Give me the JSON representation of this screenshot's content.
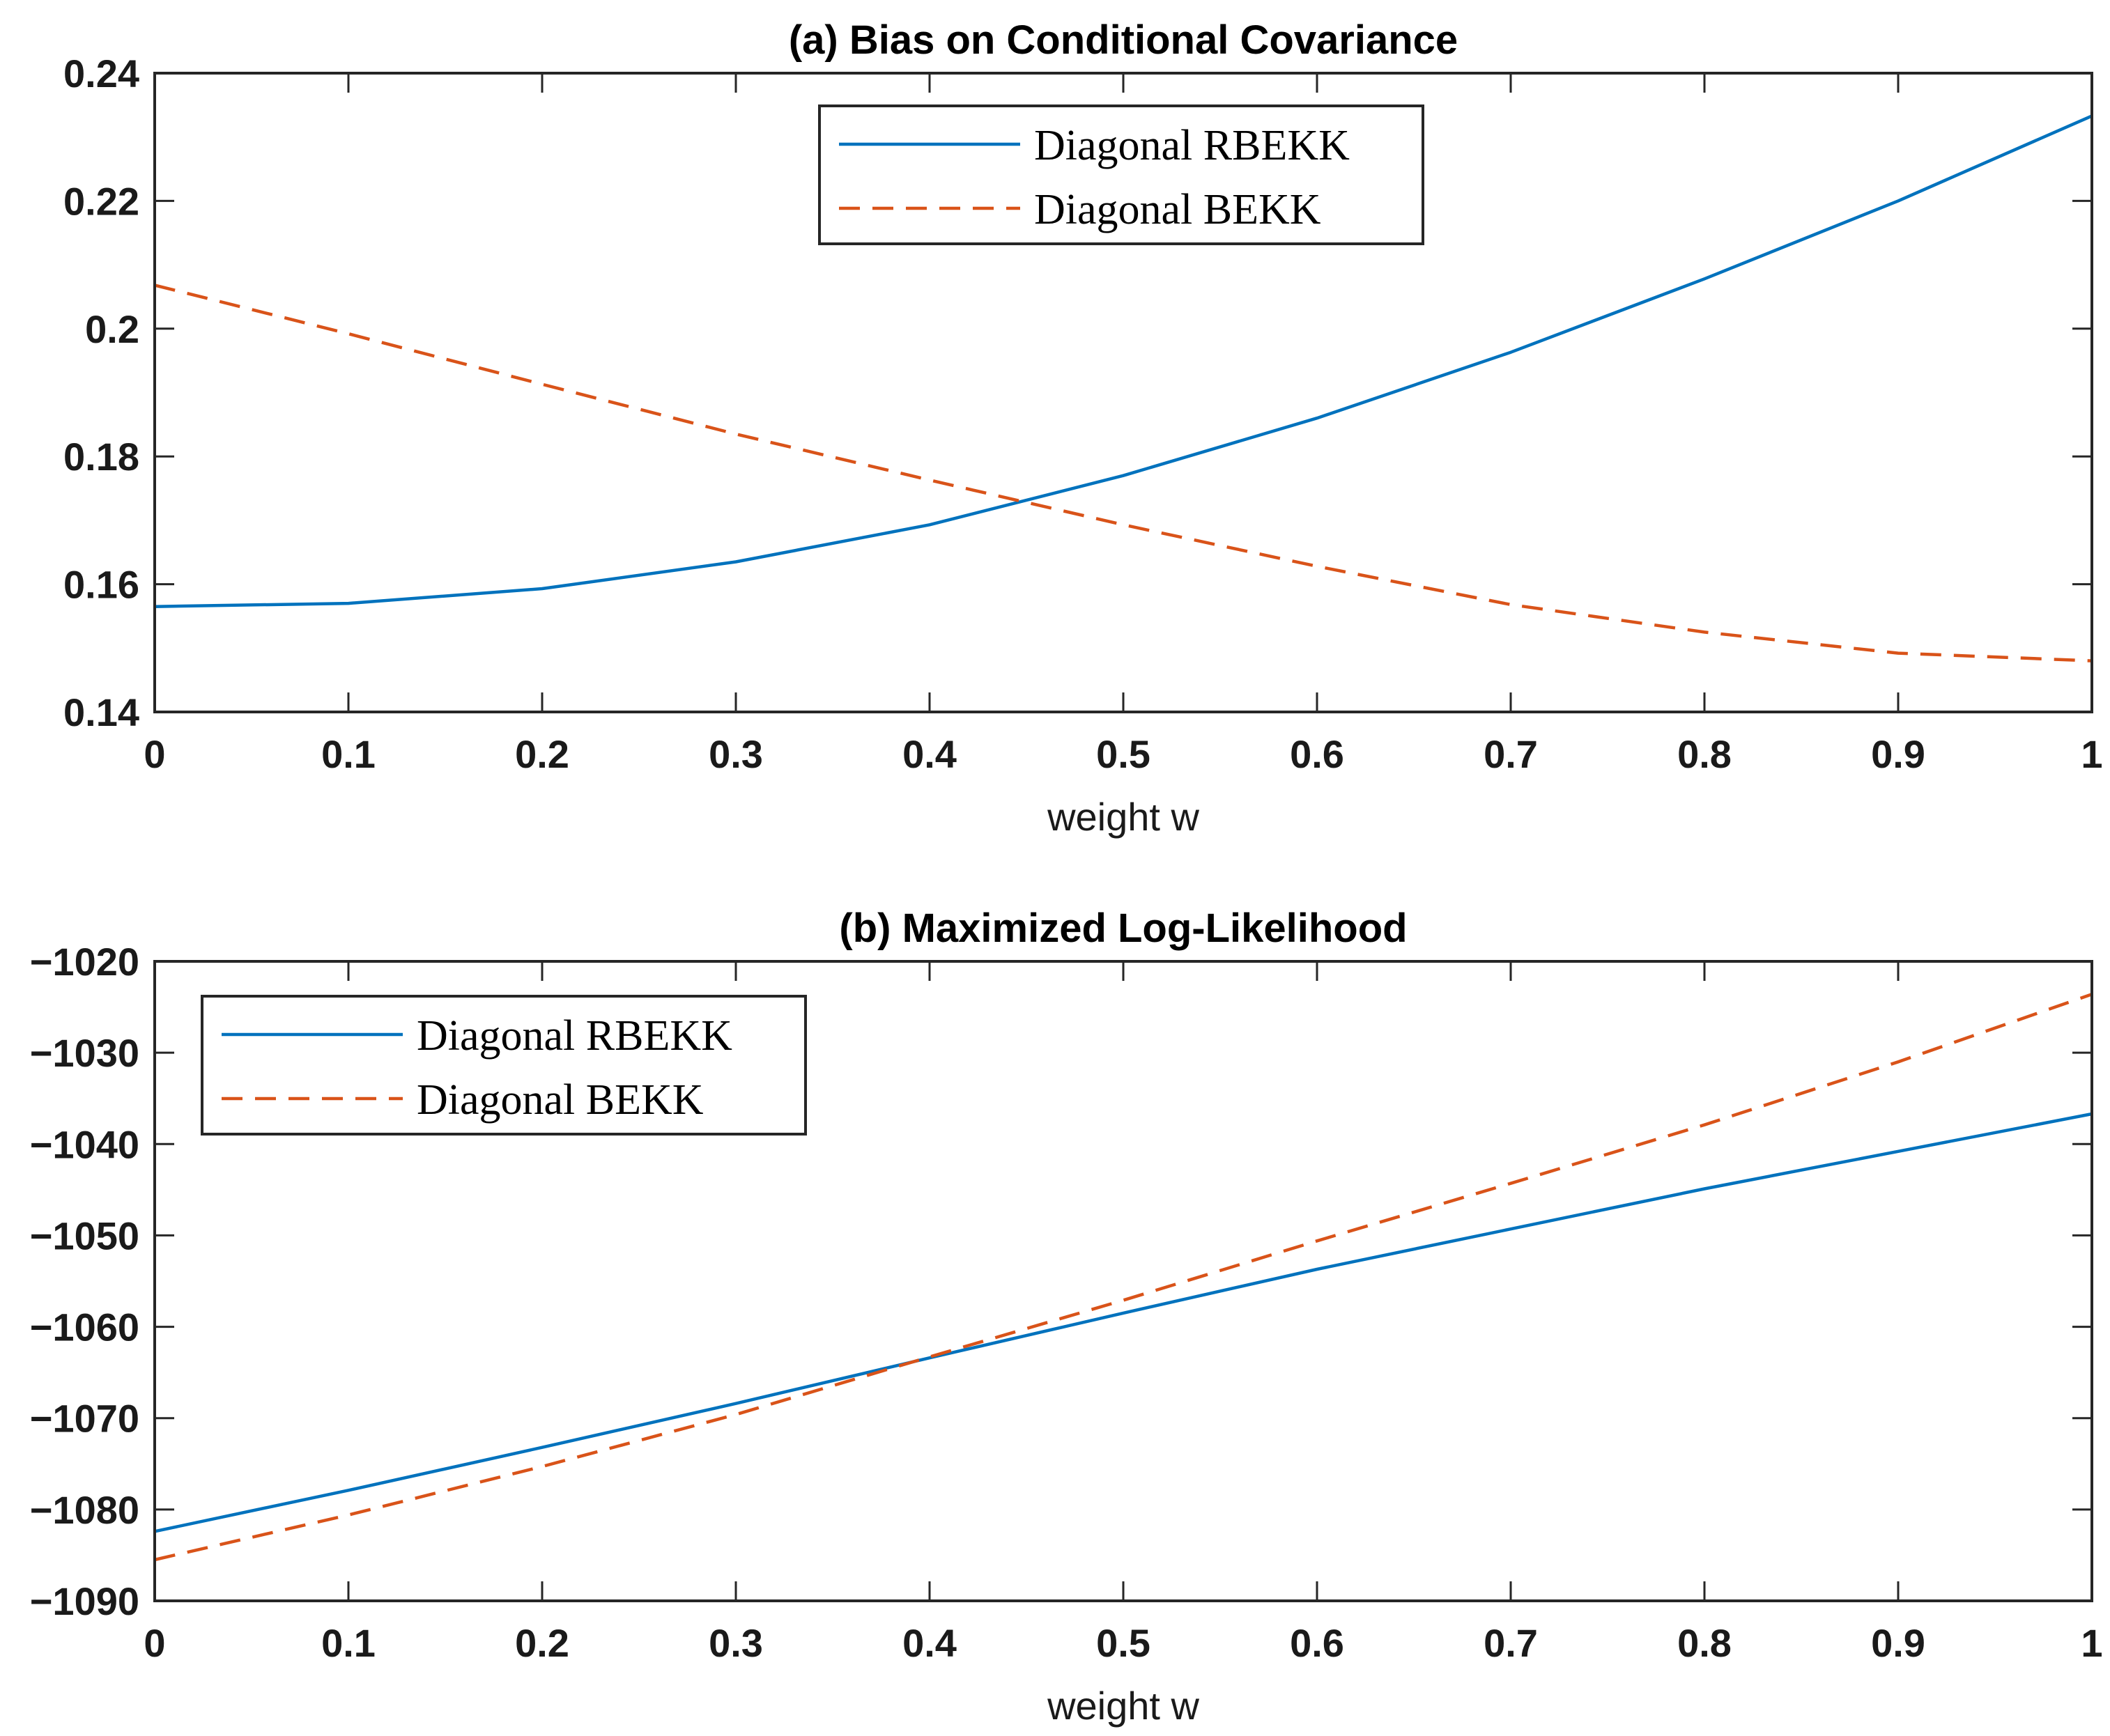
{
  "chart_data": [
    {
      "type": "line",
      "title": "(a) Bias on Conditional Covariance",
      "xlabel": "weight w",
      "ylabel": "",
      "xlim": [
        0,
        1
      ],
      "ylim": [
        0.14,
        0.24
      ],
      "x_ticks": [
        "0",
        "0.1",
        "0.2",
        "0.3",
        "0.4",
        "0.5",
        "0.6",
        "0.7",
        "0.8",
        "0.9",
        "1"
      ],
      "y_ticks": [
        "0.14",
        "0.16",
        "0.18",
        "0.2",
        "0.22",
        "0.24"
      ],
      "legend_position": "top-center",
      "grid": false,
      "x": [
        0,
        0.1,
        0.2,
        0.3,
        0.4,
        0.5,
        0.6,
        0.7,
        0.8,
        0.9,
        1.0
      ],
      "series": [
        {
          "name": "Diagonal RBEKK",
          "color": "#0072BD",
          "style": "solid",
          "values": [
            0.1565,
            0.157,
            0.1593,
            0.1635,
            0.1693,
            0.177,
            0.186,
            0.1963,
            0.2078,
            0.22,
            0.2333
          ]
        },
        {
          "name": "Diagonal BEKK",
          "color": "#D95319",
          "style": "dashed",
          "values": [
            0.2068,
            0.1992,
            0.1913,
            0.1835,
            0.1763,
            0.1693,
            0.1628,
            0.1568,
            0.1525,
            0.1492,
            0.148
          ]
        }
      ]
    },
    {
      "type": "line",
      "title": "(b) Maximized Log-Likelihood",
      "xlabel": "weight w",
      "ylabel": "",
      "xlim": [
        0,
        1
      ],
      "ylim": [
        -1090,
        -1020
      ],
      "x_ticks": [
        "0",
        "0.1",
        "0.2",
        "0.3",
        "0.4",
        "0.5",
        "0.6",
        "0.7",
        "0.8",
        "0.9",
        "1"
      ],
      "y_ticks": [
        "−1090",
        "−1080",
        "−1070",
        "−1060",
        "−1050",
        "−1040",
        "−1030",
        "−1020"
      ],
      "legend_position": "top-left",
      "grid": false,
      "x": [
        0,
        0.1,
        0.2,
        0.3,
        0.4,
        0.5,
        0.6,
        0.7,
        0.8,
        0.9,
        1.0
      ],
      "series": [
        {
          "name": "Diagonal RBEKK",
          "color": "#0072BD",
          "style": "solid",
          "values": [
            -1082.4,
            -1077.9,
            -1073.2,
            -1068.4,
            -1063.4,
            -1058.5,
            -1053.7,
            -1049.3,
            -1044.9,
            -1040.8,
            -1036.7
          ]
        },
        {
          "name": "Diagonal BEKK",
          "color": "#D95319",
          "style": "dashed",
          "values": [
            -1085.5,
            -1080.6,
            -1075.3,
            -1069.6,
            -1063.3,
            -1057.1,
            -1050.6,
            -1044.3,
            -1037.9,
            -1031.0,
            -1023.6
          ]
        }
      ]
    }
  ]
}
